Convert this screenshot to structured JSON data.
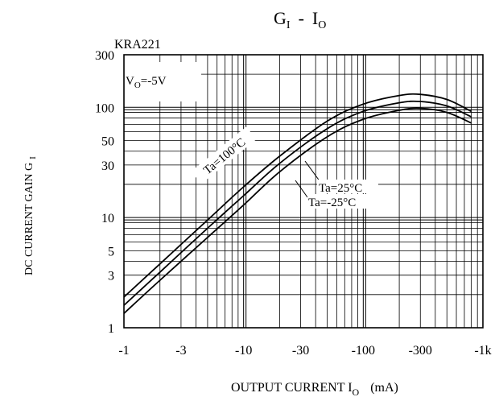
{
  "chart_data": {
    "type": "line",
    "title": "G",
    "title_sub": "I",
    "title_sep": "-",
    "title_var": "I",
    "title_var_sub": "O",
    "device": "KRA221",
    "condition_main": "V",
    "condition_sub": "O",
    "condition_value": "=-5V",
    "xlabel_main": "OUTPUT CURRENT I",
    "xlabel_sub": "O",
    "xlabel_unit": "(mA)",
    "ylabel_main": "DC CURRENT GAIN G",
    "ylabel_sub": "I",
    "x_scale": "log",
    "y_scale": "log",
    "xlim": [
      -1,
      -1000
    ],
    "ylim": [
      1,
      300
    ],
    "x_ticks": [
      {
        "value": -1,
        "label": "-1"
      },
      {
        "value": -3,
        "label": "-3"
      },
      {
        "value": -10,
        "label": "-10"
      },
      {
        "value": -30,
        "label": "-30"
      },
      {
        "value": -100,
        "label": "-100"
      },
      {
        "value": -300,
        "label": "-300"
      },
      {
        "value": -1000,
        "label": "-1k"
      }
    ],
    "y_ticks": [
      {
        "value": 1,
        "label": "1"
      },
      {
        "value": 3,
        "label": "3"
      },
      {
        "value": 5,
        "label": "5"
      },
      {
        "value": 10,
        "label": "10"
      },
      {
        "value": 30,
        "label": "30"
      },
      {
        "value": 50,
        "label": "50"
      },
      {
        "value": 100,
        "label": "100"
      },
      {
        "value": 300,
        "label": "300"
      }
    ],
    "grid": true,
    "series": [
      {
        "name": "Ta=100°C",
        "x": [
          -1,
          -2,
          -5,
          -10,
          -20,
          -50,
          -100,
          -200,
          -300,
          -500,
          -800
        ],
        "y": [
          1.9,
          3.8,
          9.5,
          19,
          36,
          75,
          107,
          128,
          131,
          118,
          92
        ]
      },
      {
        "name": "Ta=25°C",
        "x": [
          -1,
          -2,
          -5,
          -10,
          -20,
          -50,
          -100,
          -200,
          -300,
          -500,
          -800
        ],
        "y": [
          1.6,
          3.2,
          8.0,
          15.8,
          31,
          64,
          92,
          110,
          113,
          103,
          82
        ]
      },
      {
        "name": "Ta=-25°C",
        "x": [
          -1,
          -2,
          -5,
          -10,
          -20,
          -50,
          -100,
          -200,
          -300,
          -500,
          -800
        ],
        "y": [
          1.35,
          2.7,
          6.6,
          13,
          26,
          54,
          78,
          94,
          98,
          90,
          72
        ]
      }
    ],
    "annotations": {
      "hot": "Ta=100°C",
      "room": "Ta=25°C",
      "cold": "Ta=-25°C"
    }
  }
}
